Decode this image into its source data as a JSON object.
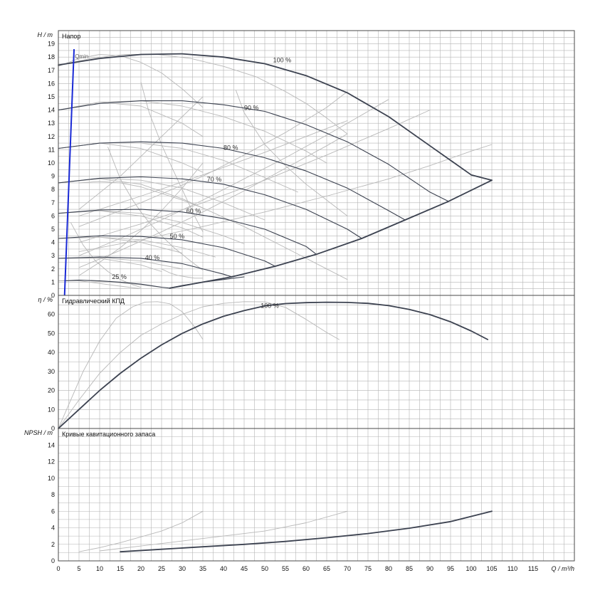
{
  "chart_data": [
    {
      "type": "line",
      "id": "head",
      "title": "Напор",
      "ylabel": "H / m",
      "xlim": [
        0,
        125
      ],
      "ylim": [
        0,
        20
      ],
      "yticks": [
        0,
        1,
        2,
        3,
        4,
        5,
        6,
        7,
        8,
        9,
        10,
        11,
        12,
        13,
        14,
        15,
        16,
        17,
        18,
        19
      ],
      "qmin_label": "Qmin",
      "qmin_line": {
        "x": [
          1.5,
          3.8
        ],
        "y": [
          0,
          18.6
        ]
      },
      "main_curves": [
        {
          "name": "100 %",
          "x": [
            0,
            10,
            20,
            30,
            40,
            50,
            60,
            70,
            80,
            90,
            100,
            105
          ],
          "y": [
            17.4,
            17.9,
            18.2,
            18.25,
            18,
            17.5,
            16.6,
            15.3,
            13.5,
            11.3,
            9.1,
            8.7
          ]
        },
        {
          "name": "90 %",
          "x": [
            0,
            10,
            20,
            30,
            40,
            50,
            60,
            70,
            80,
            90,
            94.5
          ],
          "y": [
            14.0,
            14.5,
            14.7,
            14.7,
            14.4,
            13.9,
            12.9,
            11.6,
            9.9,
            7.8,
            7.1
          ]
        },
        {
          "name": "80 %",
          "x": [
            0,
            10,
            20,
            30,
            40,
            50,
            60,
            70,
            80,
            84
          ],
          "y": [
            11.1,
            11.5,
            11.6,
            11.5,
            11.1,
            10.4,
            9.4,
            8.1,
            6.4,
            5.7
          ]
        },
        {
          "name": "70 %",
          "x": [
            0,
            10,
            20,
            30,
            40,
            50,
            60,
            70,
            73.5
          ],
          "y": [
            8.5,
            8.85,
            8.95,
            8.8,
            8.4,
            7.6,
            6.5,
            5.0,
            4.3
          ]
        },
        {
          "name": "60 %",
          "x": [
            0,
            10,
            20,
            30,
            40,
            50,
            60,
            62.5
          ],
          "y": [
            6.2,
            6.45,
            6.5,
            6.3,
            5.8,
            5.0,
            3.7,
            3.1
          ]
        },
        {
          "name": "50 %",
          "x": [
            0,
            10,
            20,
            30,
            40,
            50,
            52.5
          ],
          "y": [
            4.3,
            4.5,
            4.45,
            4.2,
            3.6,
            2.6,
            2.2
          ]
        },
        {
          "name": "40 %",
          "x": [
            0,
            10,
            20,
            30,
            40,
            42
          ],
          "y": [
            2.8,
            2.9,
            2.8,
            2.4,
            1.6,
            1.4
          ]
        },
        {
          "name": "25 %",
          "x": [
            1.5,
            5,
            10,
            15,
            20,
            25,
            27,
            30,
            35,
            40,
            45
          ],
          "y": [
            1.1,
            1.15,
            1.1,
            1.0,
            0.85,
            0.62,
            0.55,
            0.75,
            1.0,
            1.2,
            1.4
          ]
        }
      ],
      "envelope": {
        "x": [
          27,
          35,
          42,
          52.5,
          62.5,
          73.5,
          84,
          94.5,
          105
        ],
        "y": [
          0.55,
          1.0,
          1.4,
          2.2,
          3.1,
          4.3,
          5.7,
          7.1,
          8.7
        ]
      },
      "grey_curves": [
        {
          "x": [
            0,
            5,
            10,
            15,
            20,
            25,
            30,
            35
          ],
          "y": [
            17.3,
            17.9,
            18.2,
            18.1,
            17.6,
            16.8,
            15.6,
            14.2
          ]
        },
        {
          "x": [
            0,
            8,
            16,
            24,
            32,
            40,
            48,
            55,
            60,
            65,
            70
          ],
          "y": [
            17.4,
            17.9,
            18.2,
            18.2,
            17.9,
            17.3,
            16.5,
            15.4,
            14.5,
            13.4,
            12.2
          ]
        },
        {
          "x": [
            0,
            10,
            20,
            30,
            35
          ],
          "y": [
            14.0,
            14.6,
            14.3,
            13.0,
            12.0
          ]
        },
        {
          "x": [
            0,
            10,
            20,
            30,
            40,
            50,
            60,
            65
          ],
          "y": [
            14.0,
            14.6,
            14.7,
            14.3,
            13.5,
            12.4,
            10.9,
            10.0
          ]
        },
        {
          "x": [
            0,
            10,
            20,
            30,
            35
          ],
          "y": [
            11.1,
            11.5,
            11.1,
            10.0,
            9.3
          ]
        },
        {
          "x": [
            0,
            10,
            20,
            30,
            40,
            50,
            58
          ],
          "y": [
            11.1,
            11.5,
            11.5,
            11.1,
            10.2,
            8.9,
            7.8
          ]
        },
        {
          "x": [
            0,
            10,
            20,
            30,
            35
          ],
          "y": [
            8.5,
            8.8,
            8.4,
            7.3,
            6.6
          ]
        },
        {
          "x": [
            0,
            10,
            20,
            30,
            40,
            50
          ],
          "y": [
            8.5,
            8.85,
            8.7,
            8.1,
            7.0,
            5.7
          ]
        },
        {
          "x": [
            0,
            10,
            20,
            30,
            35
          ],
          "y": [
            6.2,
            6.4,
            6.0,
            5.1,
            4.4
          ]
        },
        {
          "x": [
            0,
            10,
            20,
            30,
            40,
            45
          ],
          "y": [
            6.2,
            6.4,
            6.2,
            5.5,
            4.5,
            3.9
          ]
        },
        {
          "x": [
            0,
            10,
            20,
            30
          ],
          "y": [
            4.3,
            4.4,
            4.0,
            3.2
          ]
        },
        {
          "x": [
            0,
            10,
            20,
            30,
            38
          ],
          "y": [
            4.3,
            4.4,
            4.2,
            3.6,
            2.9
          ]
        },
        {
          "x": [
            0,
            10,
            20,
            25
          ],
          "y": [
            2.8,
            2.8,
            2.3,
            1.8
          ]
        },
        {
          "x": [
            0,
            10,
            20,
            30
          ],
          "y": [
            2.8,
            2.85,
            2.6,
            2.0
          ]
        },
        {
          "x": [
            0,
            5,
            10,
            15,
            20
          ],
          "y": [
            1.1,
            1.1,
            0.9,
            0.7,
            0.5
          ]
        },
        {
          "x": [
            0,
            5,
            10,
            15,
            20,
            25
          ],
          "y": [
            1.1,
            1.15,
            1.05,
            0.95,
            0.8,
            0.6
          ]
        },
        {
          "x": [
            5,
            10,
            15,
            20,
            25,
            30,
            35
          ],
          "y": [
            1.5,
            2.5,
            3.6,
            4.9,
            6.4,
            8.1,
            10.0
          ]
        },
        {
          "x": [
            5,
            15,
            25,
            35,
            45,
            55,
            65,
            70
          ],
          "y": [
            2.1,
            3.4,
            4.8,
            6.3,
            7.9,
            9.6,
            11.3,
            12.2
          ]
        },
        {
          "x": [
            5,
            15,
            25,
            35,
            45,
            55,
            65,
            75,
            80
          ],
          "y": [
            3.0,
            4.3,
            5.7,
            7.2,
            8.8,
            10.4,
            12.1,
            13.9,
            14.8
          ]
        },
        {
          "x": [
            5,
            20,
            35,
            50,
            65,
            70
          ],
          "y": [
            6.0,
            7.5,
            9.1,
            10.8,
            12.6,
            13.2
          ]
        },
        {
          "x": [
            5,
            20,
            35,
            50,
            65,
            80,
            90
          ],
          "y": [
            4.0,
            5.4,
            7.0,
            8.7,
            10.6,
            12.6,
            14.0
          ]
        },
        {
          "x": [
            5,
            20,
            35,
            50,
            65,
            80,
            90,
            100,
            105
          ],
          "y": [
            3.3,
            4.2,
            5.2,
            6.3,
            7.5,
            8.8,
            9.8,
            10.9,
            11.4
          ]
        },
        {
          "x": [
            5,
            15,
            25,
            35
          ],
          "y": [
            6.5,
            9.0,
            12.0,
            15.0
          ]
        },
        {
          "x": [
            5,
            20,
            35,
            45,
            55,
            65,
            70
          ],
          "y": [
            5.2,
            7.0,
            9.0,
            10.6,
            12.3,
            14.2,
            15.4
          ]
        },
        {
          "x": [
            12,
            15,
            18,
            20,
            22,
            25,
            28,
            32,
            35
          ],
          "y": [
            11.2,
            8.8,
            7.2,
            6.3,
            5.5,
            4.5,
            3.6,
            2.6,
            1.9
          ]
        },
        {
          "x": [
            20,
            22,
            25,
            27,
            30,
            33,
            35
          ],
          "y": [
            16.1,
            13.8,
            11.4,
            10.0,
            8.0,
            6.0,
            4.8
          ]
        },
        {
          "x": [
            43,
            45,
            50,
            55,
            60,
            65,
            70
          ],
          "y": [
            15.5,
            13.8,
            11.4,
            9.8,
            8.4,
            7.2,
            6.0
          ]
        },
        {
          "x": [
            3,
            6,
            9,
            12,
            15,
            18,
            20
          ],
          "y": [
            5.5,
            3.8,
            2.6,
            1.8,
            1.2,
            0.8,
            0.6
          ]
        },
        {
          "x": [
            5,
            10,
            15,
            20,
            25,
            30,
            35,
            40,
            45,
            50,
            55,
            60,
            65,
            70
          ],
          "y": [
            8.5,
            8.6,
            8.5,
            8.2,
            7.7,
            7.2,
            6.6,
            5.9,
            5.2,
            4.4,
            3.6,
            2.8,
            2.0,
            1.2
          ]
        },
        {
          "x": [
            25,
            27,
            29,
            31,
            33,
            35
          ],
          "y": [
            2.0,
            1.7,
            1.5,
            1.4,
            1.3,
            1.3
          ]
        }
      ]
    },
    {
      "type": "line",
      "id": "efficiency",
      "title": "Гидравлический КПД",
      "ylabel": "η / %",
      "xlim": [
        0,
        125
      ],
      "ylim": [
        0,
        70
      ],
      "yticks": [
        0,
        10,
        20,
        30,
        40,
        50,
        60
      ],
      "main_curves": [
        {
          "name": "100 %",
          "x": [
            0,
            5,
            10,
            15,
            20,
            25,
            30,
            35,
            40,
            45,
            50,
            55,
            60,
            65,
            70,
            75,
            80,
            85,
            90,
            95,
            100,
            104
          ],
          "y": [
            0,
            10,
            20,
            29,
            37,
            44,
            50,
            55,
            59,
            62,
            64.5,
            65.7,
            66.2,
            66.4,
            66.3,
            65.8,
            64.6,
            62.6,
            59.9,
            56.1,
            51.3,
            46.8
          ]
        }
      ],
      "grey_curves": [
        {
          "x": [
            0,
            3,
            6,
            10,
            14,
            18,
            21,
            24,
            27,
            30,
            33,
            35
          ],
          "y": [
            0,
            15,
            30,
            46,
            58,
            64,
            66.5,
            66.7,
            65.6,
            61.4,
            53.4,
            46.9
          ]
        },
        {
          "x": [
            0,
            5,
            10,
            15,
            20,
            25,
            30,
            35,
            40,
            45,
            50,
            55,
            60,
            65,
            68
          ],
          "y": [
            0,
            15,
            29,
            40,
            49,
            55,
            60,
            64,
            65.8,
            66.7,
            66.6,
            63.7,
            57.4,
            50.5,
            46.8
          ]
        }
      ]
    },
    {
      "type": "line",
      "id": "npsh",
      "title": "Кривые кавитационного запаса",
      "ylabel": "NPSH / m",
      "xlabel": "Q / m³/h",
      "xlim": [
        0,
        125
      ],
      "ylim": [
        0,
        16
      ],
      "yticks": [
        0,
        2,
        4,
        6,
        8,
        10,
        12,
        14
      ],
      "xticks": [
        0,
        5,
        10,
        15,
        20,
        25,
        30,
        35,
        40,
        45,
        50,
        55,
        60,
        65,
        70,
        75,
        80,
        85,
        90,
        95,
        100,
        105,
        110,
        115
      ],
      "main_curves": [
        {
          "name": "100 %",
          "x": [
            15,
            25,
            35,
            45,
            55,
            65,
            75,
            85,
            95,
            105
          ],
          "y": [
            1.1,
            1.4,
            1.7,
            2.0,
            2.35,
            2.8,
            3.3,
            3.95,
            4.75,
            6.0
          ]
        }
      ],
      "grey_curves": [
        {
          "x": [
            5,
            10,
            15,
            20,
            25,
            30,
            35
          ],
          "y": [
            1.1,
            1.6,
            2.2,
            2.9,
            3.6,
            4.6,
            6.0
          ]
        },
        {
          "x": [
            10,
            20,
            30,
            40,
            50,
            60,
            70
          ],
          "y": [
            1.2,
            1.8,
            2.4,
            3.0,
            3.6,
            4.6,
            6.0
          ]
        }
      ]
    }
  ]
}
